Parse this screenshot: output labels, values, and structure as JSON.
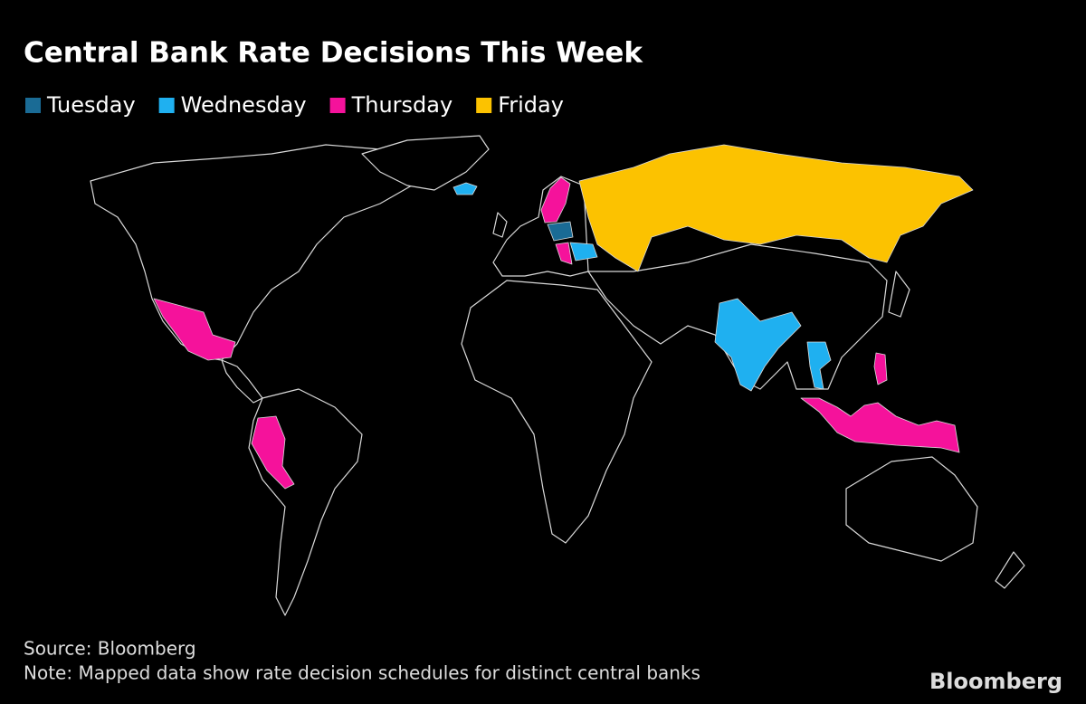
{
  "title": "Central Bank Rate Decisions This Week",
  "legend": [
    {
      "label": "Tuesday",
      "color": "#1a6b95"
    },
    {
      "label": "Wednesday",
      "color": "#1fb0f0"
    },
    {
      "label": "Thursday",
      "color": "#f5129b"
    },
    {
      "label": "Friday",
      "color": "#fcc200"
    }
  ],
  "source": "Source: Bloomberg",
  "note": "Note: Mapped data show rate decision schedules for distinct central banks",
  "brand": "Bloomberg"
}
